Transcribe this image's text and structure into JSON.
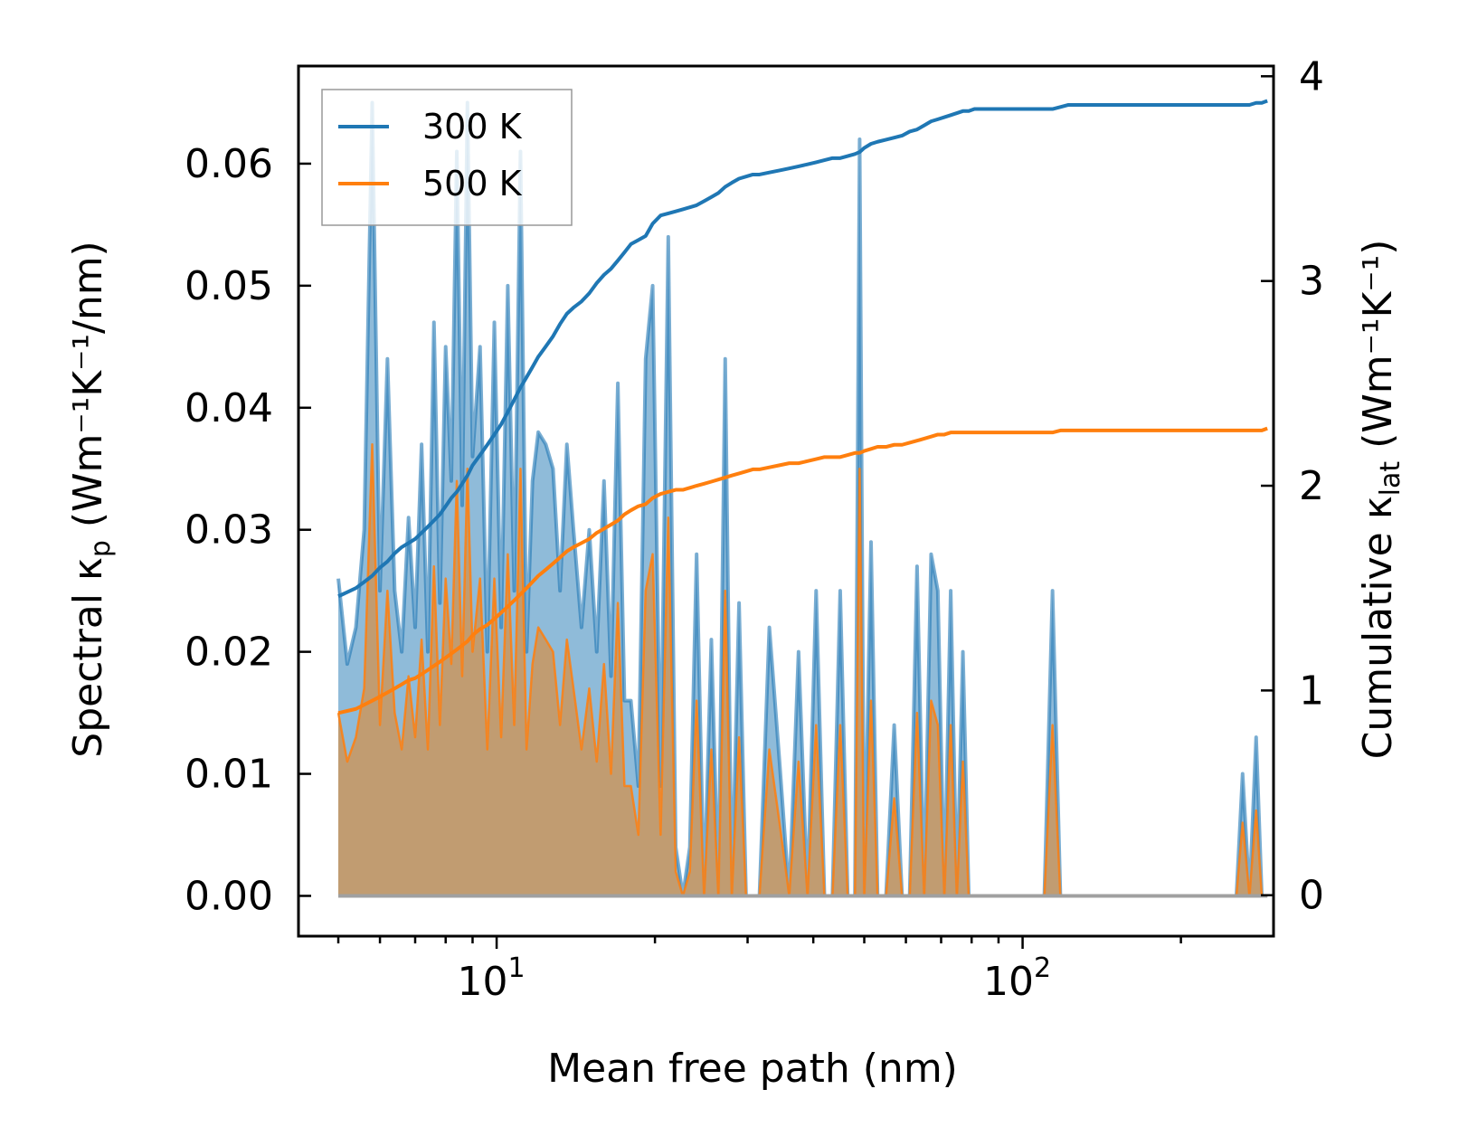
{
  "chart_data": {
    "type": "line",
    "title": "",
    "xlabel": "Mean free path (nm)",
    "ylabel_left": {
      "base": "Spectral κ",
      "sub": "p",
      "unit": " (Wm⁻¹K⁻¹/nm)"
    },
    "ylabel_right": {
      "base": "Cumulative κ",
      "sub": "lat",
      "unit": " (Wm⁻¹K⁻¹)"
    },
    "xscale": "log",
    "xlim": [
      4.2,
      300
    ],
    "ylim_left": [
      -0.0033,
      0.068
    ],
    "ylim_right": [
      -0.2,
      4.05
    ],
    "x_ticks": [
      {
        "value": 10,
        "base": "10",
        "exp": "1"
      },
      {
        "value": 100,
        "base": "10",
        "exp": "2"
      }
    ],
    "y_left_ticks": [
      "0.00",
      "0.01",
      "0.02",
      "0.03",
      "0.04",
      "0.05",
      "0.06"
    ],
    "y_right_ticks": [
      "0",
      "1",
      "2",
      "3",
      "4"
    ],
    "legend": {
      "position": "top-left",
      "entries": [
        "300 K",
        "500 K"
      ]
    },
    "colors": {
      "300K": "#1f77b4",
      "500K": "#ff7f0e",
      "fill500": "#c49a6c"
    },
    "x": [
      5.0,
      5.2,
      5.4,
      5.6,
      5.8,
      6.0,
      6.2,
      6.4,
      6.6,
      6.8,
      7.0,
      7.2,
      7.4,
      7.6,
      7.8,
      8.0,
      8.2,
      8.4,
      8.6,
      8.8,
      9.0,
      9.3,
      9.6,
      9.9,
      10.2,
      10.5,
      10.8,
      11.1,
      11.4,
      11.7,
      12.0,
      12.4,
      12.8,
      13.2,
      13.6,
      14.0,
      14.5,
      15.0,
      15.5,
      16.0,
      16.5,
      17.0,
      17.5,
      18.0,
      18.6,
      19.2,
      19.8,
      20.5,
      21.2,
      21.9,
      22.6,
      23.3,
      24.0,
      24.8,
      25.6,
      26.4,
      27.2,
      28.0,
      28.9,
      29.8,
      30.7,
      31.6,
      33.0,
      34.5,
      36.0,
      37.5,
      39.0,
      40.5,
      42.0,
      43.5,
      45.0,
      46.5,
      48.0,
      49.0,
      50.0,
      51.5,
      53.0,
      55.0,
      57.0,
      59.0,
      61.0,
      63.0,
      65.0,
      67.0,
      69.0,
      71.0,
      73.0,
      75.0,
      77.0,
      79.0,
      81.0,
      95.0,
      110.0,
      114.0,
      118.0,
      122.0,
      240.0,
      255.0,
      262.0,
      270.0,
      278.0,
      285.0,
      292.0
    ],
    "series": [
      {
        "name": "300 K",
        "spectral": [
          0.026,
          0.019,
          0.022,
          0.03,
          0.065,
          0.025,
          0.044,
          0.025,
          0.02,
          0.031,
          0.022,
          0.037,
          0.02,
          0.047,
          0.024,
          0.045,
          0.034,
          0.061,
          0.032,
          0.065,
          0.036,
          0.045,
          0.02,
          0.047,
          0.022,
          0.05,
          0.025,
          0.061,
          0.02,
          0.034,
          0.038,
          0.037,
          0.035,
          0.025,
          0.037,
          0.03,
          0.022,
          0.03,
          0.02,
          0.034,
          0.018,
          0.042,
          0.016,
          0.016,
          0.009,
          0.044,
          0.05,
          0.009,
          0.054,
          0.004,
          0.0,
          0.004,
          0.028,
          0.0,
          0.021,
          0.0,
          0.044,
          0.0,
          0.024,
          0.0,
          0.0,
          0.0,
          0.022,
          0.011,
          0.0,
          0.02,
          0.0,
          0.025,
          0.0,
          0.0,
          0.025,
          0.0,
          0.0,
          0.062,
          0.0,
          0.029,
          0.0,
          0.0,
          0.014,
          0.0,
          0.0,
          0.027,
          0.0,
          0.028,
          0.025,
          0.0,
          0.025,
          0.0,
          0.02,
          0.0,
          0.0,
          0.0,
          0.0,
          0.025,
          0.0,
          0.0,
          0.0,
          0.0,
          0.01,
          0.0,
          0.013,
          0.0,
          0.0
        ],
        "cumulative": [
          1.46,
          1.48,
          1.5,
          1.53,
          1.56,
          1.6,
          1.63,
          1.67,
          1.7,
          1.72,
          1.74,
          1.77,
          1.8,
          1.83,
          1.86,
          1.9,
          1.94,
          1.97,
          2.01,
          2.05,
          2.1,
          2.15,
          2.2,
          2.25,
          2.3,
          2.36,
          2.42,
          2.48,
          2.53,
          2.58,
          2.63,
          2.68,
          2.73,
          2.79,
          2.84,
          2.87,
          2.9,
          2.94,
          2.99,
          3.03,
          3.06,
          3.1,
          3.14,
          3.18,
          3.2,
          3.22,
          3.28,
          3.32,
          3.33,
          3.34,
          3.35,
          3.36,
          3.37,
          3.39,
          3.41,
          3.43,
          3.46,
          3.48,
          3.5,
          3.51,
          3.52,
          3.52,
          3.53,
          3.54,
          3.55,
          3.56,
          3.57,
          3.58,
          3.59,
          3.6,
          3.6,
          3.61,
          3.62,
          3.63,
          3.65,
          3.67,
          3.68,
          3.69,
          3.7,
          3.71,
          3.73,
          3.74,
          3.76,
          3.78,
          3.79,
          3.8,
          3.81,
          3.82,
          3.83,
          3.83,
          3.84,
          3.84,
          3.84,
          3.84,
          3.85,
          3.86,
          3.86,
          3.86,
          3.86,
          3.86,
          3.87,
          3.87,
          3.88
        ]
      },
      {
        "name": "500 K",
        "spectral": [
          0.015,
          0.011,
          0.013,
          0.017,
          0.037,
          0.014,
          0.025,
          0.015,
          0.012,
          0.018,
          0.013,
          0.021,
          0.012,
          0.027,
          0.014,
          0.026,
          0.019,
          0.034,
          0.018,
          0.035,
          0.02,
          0.026,
          0.012,
          0.026,
          0.013,
          0.028,
          0.014,
          0.035,
          0.012,
          0.019,
          0.022,
          0.021,
          0.02,
          0.014,
          0.021,
          0.017,
          0.012,
          0.017,
          0.011,
          0.019,
          0.01,
          0.024,
          0.009,
          0.009,
          0.005,
          0.025,
          0.028,
          0.005,
          0.031,
          0.002,
          0.0,
          0.002,
          0.016,
          0.0,
          0.012,
          0.0,
          0.025,
          0.0,
          0.013,
          0.0,
          0.0,
          0.0,
          0.012,
          0.006,
          0.0,
          0.011,
          0.0,
          0.014,
          0.0,
          0.0,
          0.014,
          0.0,
          0.0,
          0.035,
          0.0,
          0.016,
          0.0,
          0.0,
          0.008,
          0.0,
          0.0,
          0.015,
          0.0,
          0.016,
          0.014,
          0.0,
          0.014,
          0.0,
          0.011,
          0.0,
          0.0,
          0.0,
          0.0,
          0.014,
          0.0,
          0.0,
          0.0,
          0.0,
          0.006,
          0.0,
          0.007,
          0.0,
          0.0
        ],
        "cumulative": [
          0.89,
          0.9,
          0.91,
          0.93,
          0.95,
          0.97,
          0.99,
          1.01,
          1.03,
          1.05,
          1.06,
          1.08,
          1.1,
          1.12,
          1.14,
          1.16,
          1.18,
          1.2,
          1.22,
          1.24,
          1.27,
          1.3,
          1.32,
          1.35,
          1.38,
          1.41,
          1.44,
          1.47,
          1.5,
          1.53,
          1.56,
          1.59,
          1.62,
          1.65,
          1.68,
          1.7,
          1.72,
          1.74,
          1.77,
          1.79,
          1.81,
          1.83,
          1.86,
          1.88,
          1.9,
          1.91,
          1.94,
          1.96,
          1.97,
          1.98,
          1.98,
          1.99,
          2.0,
          2.01,
          2.02,
          2.03,
          2.04,
          2.05,
          2.06,
          2.07,
          2.08,
          2.08,
          2.09,
          2.1,
          2.11,
          2.11,
          2.12,
          2.13,
          2.14,
          2.14,
          2.14,
          2.15,
          2.16,
          2.16,
          2.17,
          2.18,
          2.19,
          2.19,
          2.2,
          2.2,
          2.21,
          2.22,
          2.23,
          2.24,
          2.25,
          2.25,
          2.26,
          2.26,
          2.26,
          2.26,
          2.26,
          2.26,
          2.26,
          2.26,
          2.27,
          2.27,
          2.27,
          2.27,
          2.27,
          2.27,
          2.27,
          2.27,
          2.28
        ]
      }
    ]
  }
}
